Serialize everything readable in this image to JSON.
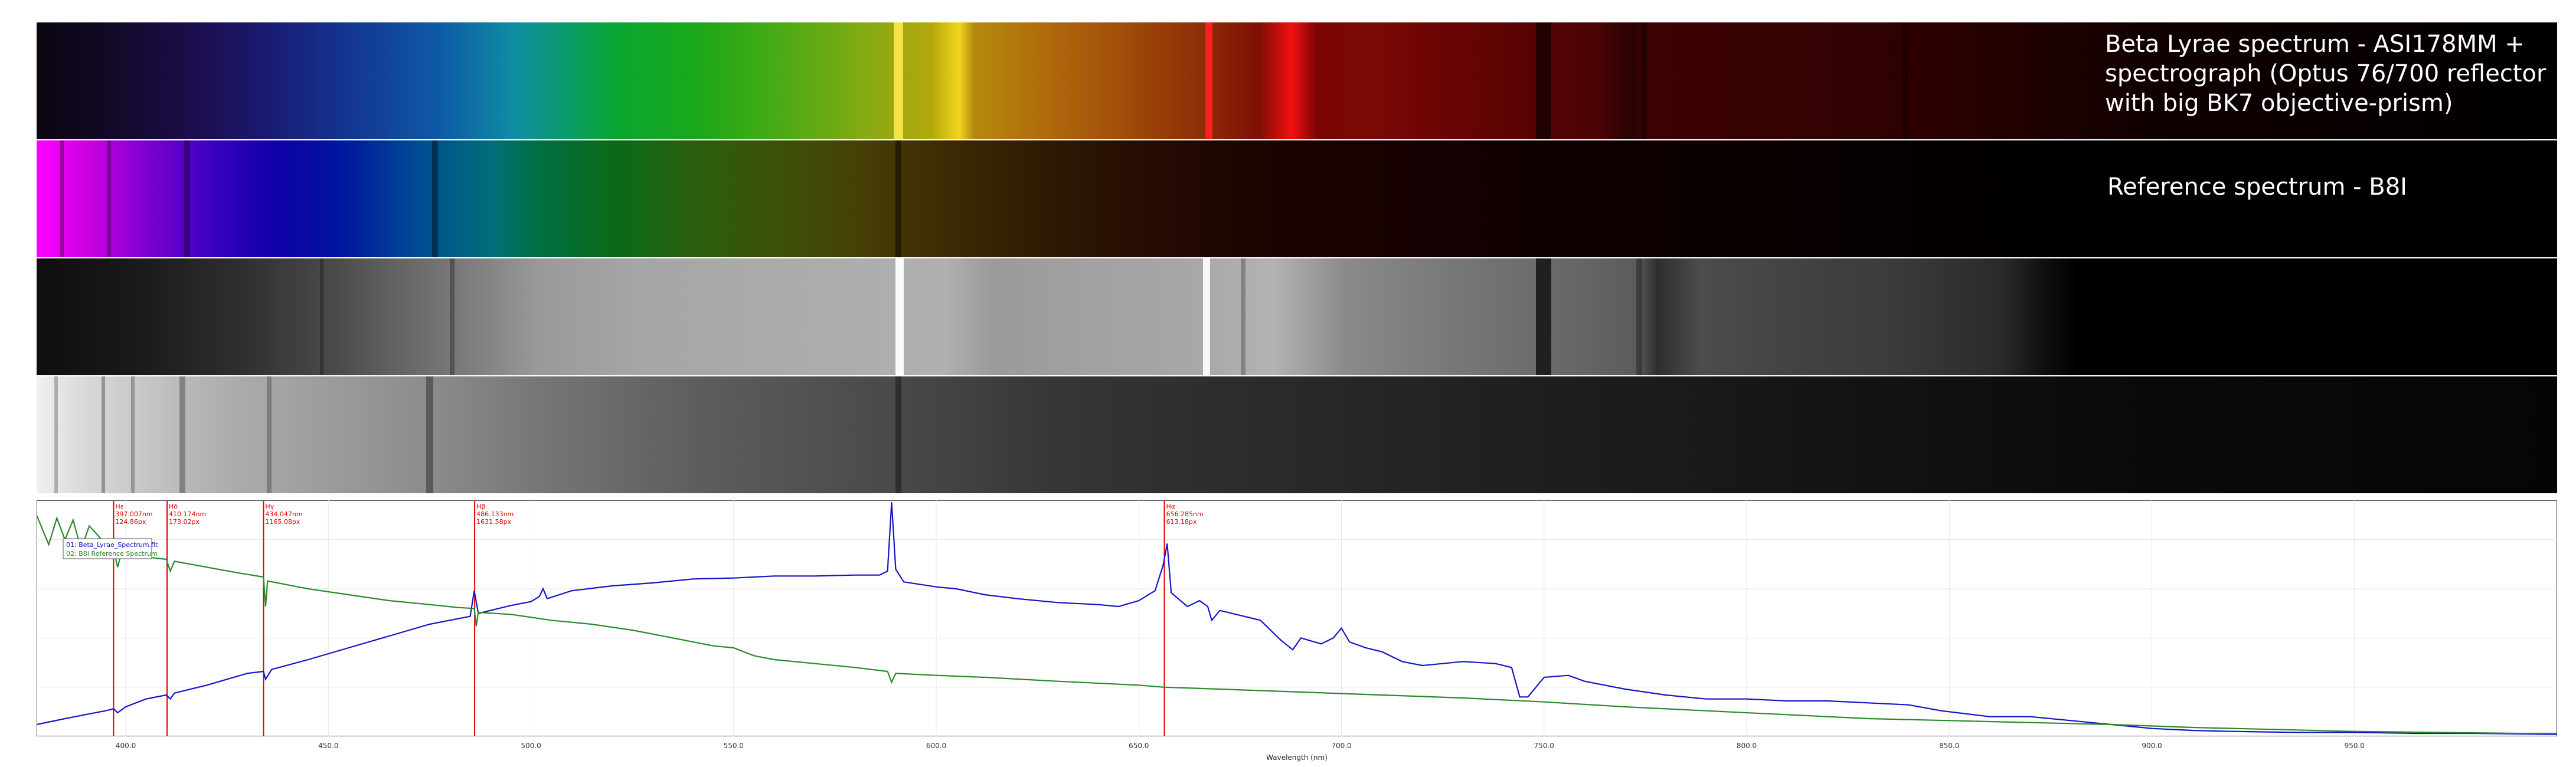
{
  "strips": {
    "observed_label": "Beta Lyrae spectrum - ASI178MM + spectrograph (Optus 76/700 reflector with big BK7 objective-prism)",
    "reference_label": "Reference spectrum - B8I"
  },
  "colors": {
    "observed_series": "#1414c8",
    "reference_series": "#2a8a2a",
    "marker_lines": "#e00000",
    "grid": "#e6e6e6"
  },
  "chart_data": {
    "type": "line",
    "xlabel": "Wavelength (nm)",
    "ylabel": "",
    "xlim": [
      378,
      1000
    ],
    "ylim": [
      0,
      240
    ],
    "xticks": [
      "400.0",
      "450.0",
      "500.0",
      "550.0",
      "600.0",
      "650.0",
      "700.0",
      "750.0",
      "800.0",
      "850.0",
      "900.0",
      "950.0"
    ],
    "yticks": [
      "50",
      "100",
      "150",
      "200"
    ],
    "grid": true,
    "legend": "top-left",
    "legend_items": [
      "01: Beta_Lyrae_Spectrum.fit",
      "02: B8I Reference Spectrum"
    ],
    "series": [
      {
        "name": "01: Beta_Lyrae_Spectrum.fit",
        "points": [
          [
            378,
            12
          ],
          [
            385,
            18
          ],
          [
            390,
            22
          ],
          [
            395,
            26
          ],
          [
            397,
            28
          ],
          [
            398,
            24
          ],
          [
            400,
            30
          ],
          [
            405,
            38
          ],
          [
            410,
            42
          ],
          [
            411,
            38
          ],
          [
            412,
            44
          ],
          [
            420,
            52
          ],
          [
            430,
            64
          ],
          [
            434,
            66
          ],
          [
            434.5,
            58
          ],
          [
            436,
            68
          ],
          [
            445,
            78
          ],
          [
            455,
            90
          ],
          [
            465,
            102
          ],
          [
            475,
            114
          ],
          [
            480,
            118
          ],
          [
            485,
            122
          ],
          [
            486,
            148
          ],
          [
            487,
            125
          ],
          [
            490,
            128
          ],
          [
            495,
            133
          ],
          [
            500,
            137
          ],
          [
            502,
            142
          ],
          [
            503,
            150
          ],
          [
            504,
            140
          ],
          [
            510,
            148
          ],
          [
            520,
            153
          ],
          [
            530,
            156
          ],
          [
            540,
            160
          ],
          [
            550,
            161
          ],
          [
            560,
            163
          ],
          [
            570,
            163
          ],
          [
            580,
            164
          ],
          [
            586,
            164
          ],
          [
            588,
            168
          ],
          [
            589,
            238
          ],
          [
            590,
            170
          ],
          [
            592,
            157
          ],
          [
            600,
            152
          ],
          [
            605,
            150
          ],
          [
            612,
            144
          ],
          [
            620,
            140
          ],
          [
            630,
            136
          ],
          [
            640,
            134
          ],
          [
            645,
            132
          ],
          [
            650,
            138
          ],
          [
            654,
            148
          ],
          [
            656,
            174
          ],
          [
            657,
            196
          ],
          [
            658,
            146
          ],
          [
            662,
            132
          ],
          [
            665,
            138
          ],
          [
            667,
            132
          ],
          [
            668,
            118
          ],
          [
            670,
            128
          ],
          [
            674,
            124
          ],
          [
            680,
            118
          ],
          [
            685,
            98
          ],
          [
            688,
            88
          ],
          [
            690,
            100
          ],
          [
            695,
            94
          ],
          [
            698,
            100
          ],
          [
            700,
            110
          ],
          [
            702,
            96
          ],
          [
            706,
            90
          ],
          [
            710,
            86
          ],
          [
            715,
            76
          ],
          [
            720,
            72
          ],
          [
            730,
            76
          ],
          [
            738,
            74
          ],
          [
            742,
            70
          ],
          [
            744,
            40
          ],
          [
            746,
            40
          ],
          [
            750,
            60
          ],
          [
            756,
            62
          ],
          [
            760,
            56
          ],
          [
            770,
            48
          ],
          [
            780,
            42
          ],
          [
            790,
            38
          ],
          [
            800,
            38
          ],
          [
            810,
            36
          ],
          [
            820,
            36
          ],
          [
            830,
            34
          ],
          [
            840,
            32
          ],
          [
            848,
            26
          ],
          [
            852,
            24
          ],
          [
            860,
            20
          ],
          [
            870,
            20
          ],
          [
            880,
            16
          ],
          [
            890,
            12
          ],
          [
            900,
            8
          ],
          [
            910,
            6
          ],
          [
            920,
            5
          ],
          [
            935,
            4
          ],
          [
            950,
            4
          ],
          [
            965,
            3
          ],
          [
            980,
            3
          ],
          [
            1000,
            2
          ]
        ]
      },
      {
        "name": "02: B8I Reference Spectrum",
        "points": [
          [
            378,
            225
          ],
          [
            381,
            195
          ],
          [
            383,
            222
          ],
          [
            385,
            200
          ],
          [
            387,
            220
          ],
          [
            389,
            190
          ],
          [
            391,
            214
          ],
          [
            393,
            205
          ],
          [
            395,
            195
          ],
          [
            397,
            190
          ],
          [
            398,
            172
          ],
          [
            399,
            188
          ],
          [
            402,
            185
          ],
          [
            406,
            182
          ],
          [
            410,
            180
          ],
          [
            411,
            168
          ],
          [
            412,
            178
          ],
          [
            420,
            172
          ],
          [
            428,
            166
          ],
          [
            434,
            162
          ],
          [
            434.5,
            132
          ],
          [
            435,
            158
          ],
          [
            445,
            150
          ],
          [
            455,
            144
          ],
          [
            465,
            138
          ],
          [
            475,
            134
          ],
          [
            482,
            131
          ],
          [
            486,
            130
          ],
          [
            486.5,
            112
          ],
          [
            487,
            126
          ],
          [
            495,
            124
          ],
          [
            505,
            118
          ],
          [
            515,
            114
          ],
          [
            525,
            108
          ],
          [
            535,
            100
          ],
          [
            545,
            92
          ],
          [
            550,
            90
          ],
          [
            555,
            82
          ],
          [
            560,
            78
          ],
          [
            570,
            74
          ],
          [
            580,
            70
          ],
          [
            588,
            66
          ],
          [
            589,
            55
          ],
          [
            590,
            64
          ],
          [
            600,
            62
          ],
          [
            612,
            60
          ],
          [
            630,
            56
          ],
          [
            650,
            52
          ],
          [
            656,
            50
          ],
          [
            670,
            48
          ],
          [
            690,
            45
          ],
          [
            710,
            42
          ],
          [
            730,
            39
          ],
          [
            750,
            35
          ],
          [
            770,
            30
          ],
          [
            790,
            26
          ],
          [
            810,
            22
          ],
          [
            830,
            18
          ],
          [
            850,
            16
          ],
          [
            870,
            14
          ],
          [
            890,
            12
          ],
          [
            910,
            9
          ],
          [
            930,
            7
          ],
          [
            950,
            5
          ],
          [
            970,
            4
          ],
          [
            990,
            3
          ],
          [
            1000,
            3
          ]
        ]
      }
    ],
    "annotations": [
      {
        "label": "Hε",
        "wavelength": "397.007nm",
        "intensity": "124.86px",
        "x": 397.0
      },
      {
        "label": "Hδ",
        "wavelength": "410.174nm",
        "intensity": "173.02px",
        "x": 410.2
      },
      {
        "label": "Hγ",
        "wavelength": "434.047nm",
        "intensity": "1165.08px",
        "x": 434.0
      },
      {
        "label": "Hβ",
        "wavelength": "486.133nm",
        "intensity": "1631.58px",
        "x": 486.1
      },
      {
        "label": "Hα",
        "wavelength": "656.285nm",
        "intensity": "613.18px",
        "x": 656.3
      }
    ]
  }
}
